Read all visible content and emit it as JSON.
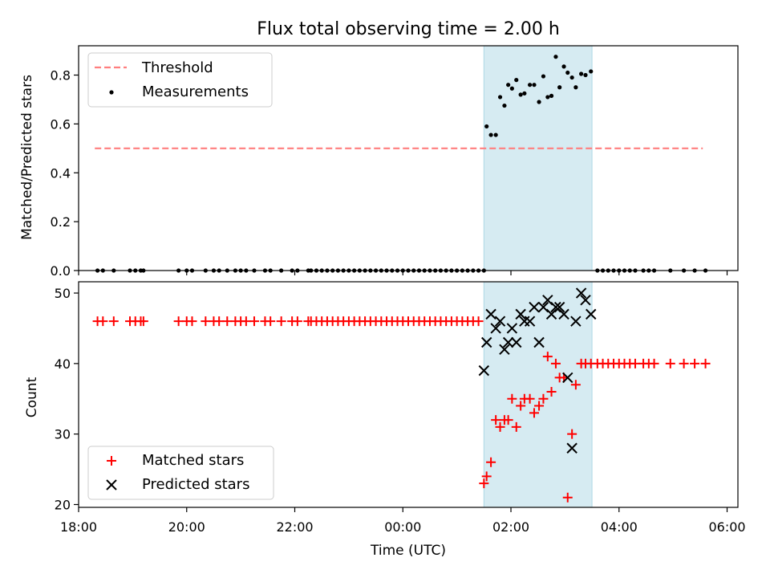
{
  "chart_data": [
    {
      "type": "scatter",
      "title": "Flux total observing time = 2.00 h",
      "xlabel": "",
      "ylabel": "Matched/Predicted stars",
      "xlim": [
        -6.0,
        6.2
      ],
      "ylim": [
        0.0,
        0.92
      ],
      "yticks": [
        "0.0",
        "0.2",
        "0.4",
        "0.6",
        "0.8"
      ],
      "shaded_interval": [
        1.5,
        3.5
      ],
      "legend": {
        "position": "top-left",
        "entries": [
          "Threshold",
          "Measurements"
        ]
      },
      "threshold": {
        "name": "Threshold",
        "value": 0.5,
        "x_range": [
          -5.7,
          5.55
        ],
        "color": "#ff7f7f"
      },
      "measurements": {
        "name": "Measurements",
        "x": [
          -5.65,
          -5.55,
          -5.35,
          -5.05,
          -4.95,
          -4.85,
          -4.8,
          -4.15,
          -4.0,
          -3.9,
          -3.65,
          -3.5,
          -3.4,
          -3.25,
          -3.1,
          -3.0,
          -2.9,
          -2.75,
          -2.55,
          -2.45,
          -2.25,
          -2.05,
          -1.95,
          -1.75,
          -1.7,
          -1.6,
          -1.5,
          -1.4,
          -1.3,
          -1.2,
          -1.1,
          -1.0,
          -0.9,
          -0.8,
          -0.7,
          -0.6,
          -0.5,
          -0.4,
          -0.3,
          -0.2,
          -0.1,
          0.0,
          0.1,
          0.2,
          0.3,
          0.4,
          0.5,
          0.6,
          0.7,
          0.8,
          0.9,
          1.0,
          1.1,
          1.2,
          1.3,
          1.4,
          1.5,
          1.55,
          1.63,
          1.72,
          1.8,
          1.88,
          1.95,
          2.02,
          2.1,
          2.18,
          2.25,
          2.35,
          2.43,
          2.52,
          2.6,
          2.68,
          2.75,
          2.83,
          2.9,
          2.98,
          3.05,
          3.13,
          3.2,
          3.3,
          3.38,
          3.48,
          3.6,
          3.7,
          3.8,
          3.9,
          4.0,
          4.1,
          4.2,
          4.3,
          4.45,
          4.55,
          4.65,
          4.95,
          5.2,
          5.4,
          5.6
        ],
        "y": [
          0,
          0,
          0,
          0,
          0,
          0,
          0,
          0,
          0,
          0,
          0,
          0,
          0,
          0,
          0,
          0,
          0,
          0,
          0,
          0,
          0,
          0,
          0,
          0,
          0,
          0,
          0,
          0,
          0,
          0,
          0,
          0,
          0,
          0,
          0,
          0,
          0,
          0,
          0,
          0,
          0,
          0,
          0,
          0,
          0,
          0,
          0,
          0,
          0,
          0,
          0,
          0,
          0,
          0,
          0,
          0,
          0,
          0.59,
          0.555,
          0.555,
          0.71,
          0.675,
          0.76,
          0.745,
          0.78,
          0.72,
          0.725,
          0.76,
          0.76,
          0.69,
          0.795,
          0.71,
          0.715,
          0.875,
          0.75,
          0.835,
          0.81,
          0.79,
          0.75,
          0.805,
          0.8,
          0.815,
          0,
          0,
          0,
          0,
          0,
          0,
          0,
          0,
          0,
          0,
          0,
          0,
          0,
          0,
          0
        ]
      }
    },
    {
      "type": "scatter",
      "title": "",
      "xlabel": "Time (UTC)",
      "ylabel": "Count",
      "xlim": [
        -6.0,
        6.2
      ],
      "ylim": [
        19.6,
        51.6
      ],
      "xticks": [
        {
          "value": -6,
          "label": "18:00"
        },
        {
          "value": -4,
          "label": "20:00"
        },
        {
          "value": -2,
          "label": "22:00"
        },
        {
          "value": 0,
          "label": "00:00"
        },
        {
          "value": 2,
          "label": "02:00"
        },
        {
          "value": 4,
          "label": "04:00"
        },
        {
          "value": 6,
          "label": "06:00"
        }
      ],
      "yticks": [
        "20",
        "30",
        "40",
        "50"
      ],
      "shaded_interval": [
        1.5,
        3.5
      ],
      "legend": {
        "position": "bottom-left",
        "entries": [
          "Matched stars",
          "Predicted stars"
        ]
      },
      "series": [
        {
          "name": "Matched stars",
          "marker": "+",
          "color": "#ff0000",
          "x": [
            -5.65,
            -5.55,
            -5.35,
            -5.05,
            -4.95,
            -4.85,
            -4.8,
            -4.15,
            -4.0,
            -3.9,
            -3.65,
            -3.5,
            -3.4,
            -3.25,
            -3.1,
            -3.0,
            -2.9,
            -2.75,
            -2.55,
            -2.45,
            -2.25,
            -2.05,
            -1.95,
            -1.75,
            -1.7,
            -1.6,
            -1.5,
            -1.4,
            -1.3,
            -1.2,
            -1.1,
            -1.0,
            -0.9,
            -0.8,
            -0.7,
            -0.6,
            -0.5,
            -0.4,
            -0.3,
            -0.2,
            -0.1,
            0.0,
            0.1,
            0.2,
            0.3,
            0.4,
            0.5,
            0.6,
            0.7,
            0.8,
            0.9,
            1.0,
            1.1,
            1.2,
            1.3,
            1.4,
            1.5,
            1.55,
            1.63,
            1.72,
            1.8,
            1.88,
            1.95,
            2.02,
            2.1,
            2.18,
            2.25,
            2.35,
            2.43,
            2.52,
            2.6,
            2.68,
            2.75,
            2.83,
            2.9,
            2.98,
            3.05,
            3.13,
            3.2,
            3.3,
            3.38,
            3.48,
            3.6,
            3.7,
            3.8,
            3.9,
            4.0,
            4.1,
            4.2,
            4.3,
            4.45,
            4.55,
            4.65,
            4.95,
            5.2,
            5.4,
            5.6
          ],
          "y": [
            46,
            46,
            46,
            46,
            46,
            46,
            46,
            46,
            46,
            46,
            46,
            46,
            46,
            46,
            46,
            46,
            46,
            46,
            46,
            46,
            46,
            46,
            46,
            46,
            46,
            46,
            46,
            46,
            46,
            46,
            46,
            46,
            46,
            46,
            46,
            46,
            46,
            46,
            46,
            46,
            46,
            46,
            46,
            46,
            46,
            46,
            46,
            46,
            46,
            46,
            46,
            46,
            46,
            46,
            46,
            46,
            23,
            24,
            26,
            32,
            31,
            32,
            32,
            35,
            31,
            34,
            35,
            35,
            33,
            34,
            35,
            41,
            36,
            40,
            38,
            38,
            21,
            30,
            37,
            40,
            40,
            40,
            40,
            40,
            40,
            40,
            40,
            40,
            40,
            40,
            40,
            40,
            40,
            40,
            40,
            40,
            40
          ]
        },
        {
          "name": "Predicted stars",
          "marker": "x",
          "color": "#000000",
          "x": [
            1.5,
            1.55,
            1.63,
            1.72,
            1.8,
            1.88,
            1.95,
            2.02,
            2.1,
            2.18,
            2.25,
            2.35,
            2.43,
            2.52,
            2.6,
            2.68,
            2.75,
            2.83,
            2.9,
            2.98,
            3.05,
            3.13,
            3.2,
            3.3,
            3.38,
            3.48
          ],
          "y": [
            39,
            43,
            47,
            45,
            46,
            42,
            43,
            45,
            43,
            47,
            46,
            46,
            48,
            43,
            48,
            49,
            47,
            48,
            48,
            47,
            38,
            28,
            46,
            50,
            49,
            47
          ]
        }
      ]
    }
  ]
}
